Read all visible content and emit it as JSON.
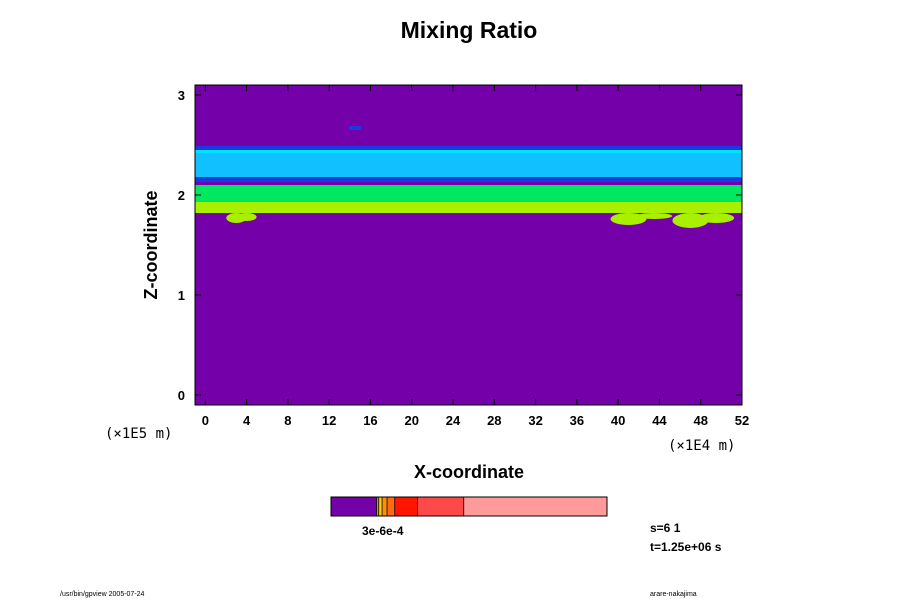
{
  "chart_data": {
    "type": "heatmap",
    "title": "Mixing Ratio",
    "xlabel": "X-coordinate",
    "ylabel": "Z-coordinate",
    "x_scale_note": "(×1E4 m)",
    "y_scale_note": "(×1E5 m)",
    "xlim": [
      -1,
      52
    ],
    "ylim": [
      -0.1,
      3.1
    ],
    "x_ticks": [
      "0",
      "4",
      "8",
      "12",
      "16",
      "20",
      "24",
      "28",
      "32",
      "36",
      "40",
      "44",
      "48",
      "52"
    ],
    "y_ticks": [
      "0",
      "1",
      "2",
      "3"
    ],
    "background_color": "#7300a8",
    "layers": [
      {
        "name": "light-cyan-band",
        "z_range": [
          2.15,
          2.47
        ],
        "color": "#00e2ff"
      },
      {
        "name": "sky-blue-band",
        "z_range": [
          2.18,
          2.42
        ],
        "color": "#10c0ff"
      },
      {
        "name": "upper-dark-blue-line",
        "z_range": [
          2.45,
          2.49
        ],
        "color": "#1a3ae0"
      },
      {
        "name": "lower-dark-blue-line",
        "z_range": [
          2.13,
          2.18
        ],
        "color": "#1a3ae0"
      },
      {
        "name": "green-band",
        "z_range": [
          1.85,
          2.1
        ],
        "color": "#00e860"
      },
      {
        "name": "yellow-green-lower",
        "z_range": [
          1.82,
          1.93
        ],
        "color": "#a8f000"
      }
    ],
    "small_feature": {
      "x": 14.5,
      "z": 2.67,
      "color": "#1a3ae0"
    },
    "colorbar": {
      "segments": [
        {
          "color": "#7300a8",
          "fraction": 0.165
        },
        {
          "color": "#c8a000",
          "fraction": 0.008
        },
        {
          "color": "#ffd000",
          "fraction": 0.012
        },
        {
          "color": "#ff9000",
          "fraction": 0.018
        },
        {
          "color": "#ff6a10",
          "fraction": 0.028
        },
        {
          "color": "#ff1500",
          "fraction": 0.082
        },
        {
          "color": "#ff4848",
          "fraction": 0.168
        },
        {
          "color": "#ff9a9a",
          "fraction": 0.519
        }
      ],
      "label": "3e-6e-4"
    }
  },
  "info": {
    "line1": "s=6 1",
    "line2": "t=1.25e+06 s"
  },
  "footer": {
    "left": "/usr/bin/gpview 2005-07-24",
    "right": "arare-nakajima"
  }
}
